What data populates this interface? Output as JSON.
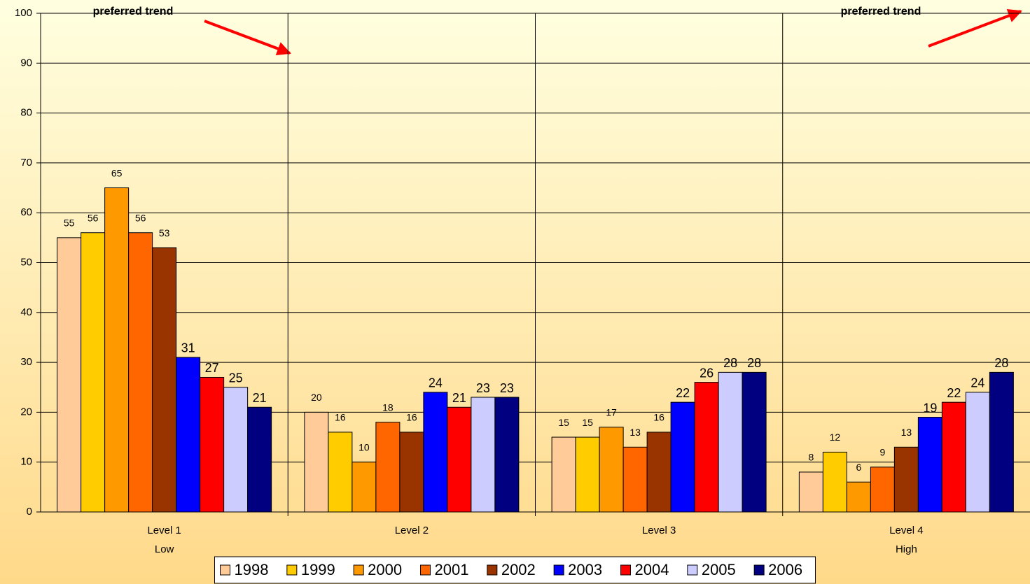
{
  "chart_data": {
    "type": "bar",
    "categories": [
      "Level 1\nLow",
      "Level 2",
      "Level 3",
      "Level 4\nHigh"
    ],
    "series": [
      {
        "name": "1998",
        "color": "#ffcc99",
        "values": [
          55,
          20,
          15,
          8
        ]
      },
      {
        "name": "1999",
        "color": "#ffcc00",
        "values": [
          56,
          16,
          15,
          12
        ]
      },
      {
        "name": "2000",
        "color": "#ff9900",
        "values": [
          65,
          10,
          17,
          6
        ]
      },
      {
        "name": "2001",
        "color": "#ff6600",
        "values": [
          56,
          18,
          13,
          9
        ]
      },
      {
        "name": "2002",
        "color": "#993300",
        "values": [
          53,
          16,
          16,
          13
        ]
      },
      {
        "name": "2003",
        "color": "#0000ff",
        "values": [
          31,
          24,
          22,
          19
        ]
      },
      {
        "name": "2004",
        "color": "#ff0000",
        "values": [
          27,
          21,
          26,
          22
        ]
      },
      {
        "name": "2005",
        "color": "#ccccff",
        "values": [
          25,
          23,
          28,
          24
        ]
      },
      {
        "name": "2006",
        "color": "#000080",
        "values": [
          21,
          23,
          28,
          28
        ]
      }
    ],
    "ylim": [
      0,
      100
    ],
    "yticks": [
      0,
      10,
      20,
      30,
      40,
      50,
      60,
      70,
      80,
      90,
      100
    ],
    "grid": true,
    "legend": "bottom",
    "annotations": [
      "preferred trend",
      "preferred trend"
    ]
  }
}
